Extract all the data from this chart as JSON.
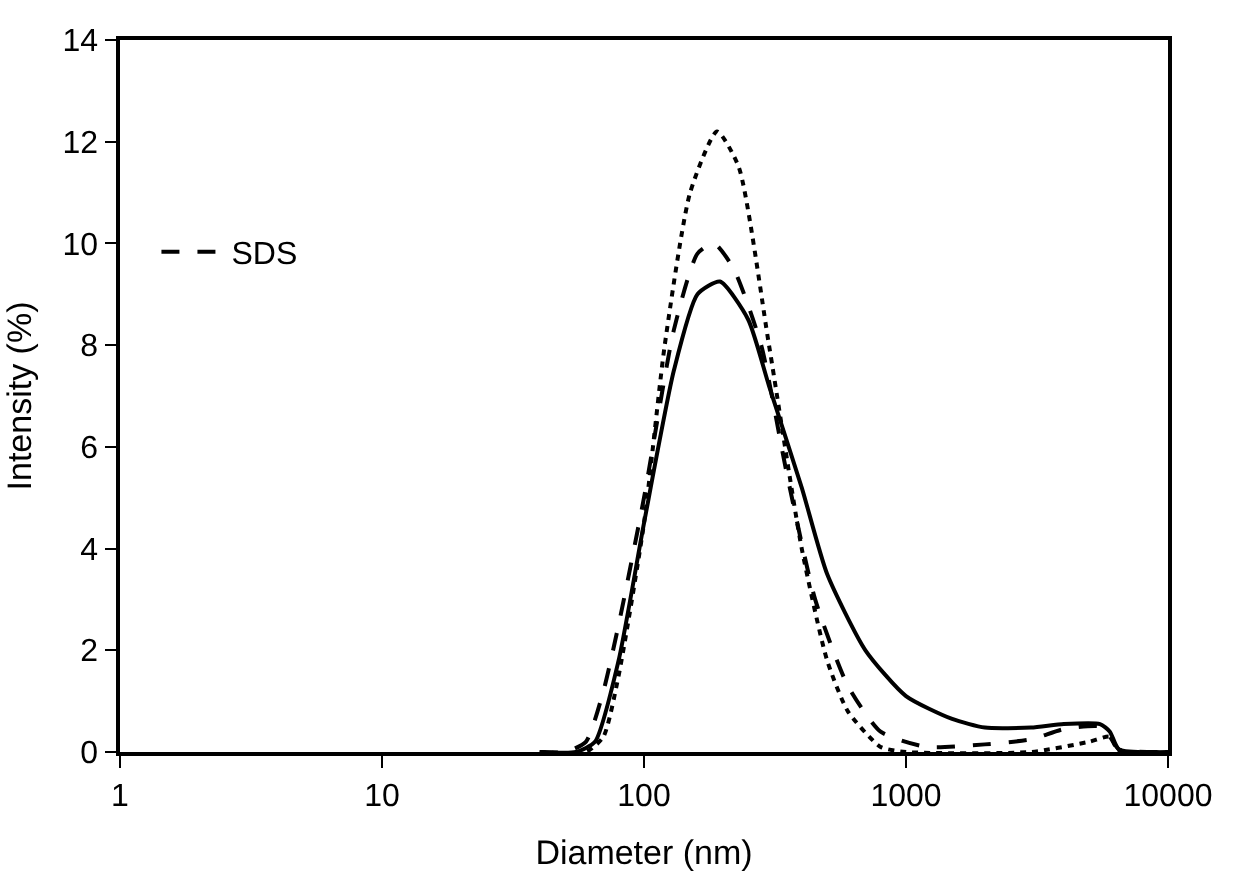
{
  "chart_data": {
    "type": "line",
    "xlabel": "Diameter (nm)",
    "ylabel": "Intensity (%)",
    "log": "x",
    "xlim": [
      1,
      10000
    ],
    "xticks": [
      1,
      10,
      100,
      1000,
      10000
    ],
    "ylim": [
      0,
      14
    ],
    "yticks": [
      0,
      2,
      4,
      6,
      8,
      10,
      12,
      14
    ],
    "grid": false,
    "legend": "top left",
    "marker": "none",
    "series": [
      {
        "color": "#000000",
        "line_style": "dotted",
        "x": [
          40,
          60,
          70,
          80,
          100,
          120,
          150,
          190,
          230,
          300,
          400,
          500,
          600,
          800,
          1000,
          3000,
          5000,
          6000,
          6500,
          10000
        ],
        "values": [
          0,
          0,
          0.3,
          1.5,
          4.5,
          8,
          11,
          12.2,
          11.5,
          8,
          4,
          1.8,
          0.8,
          0.1,
          0,
          0,
          0.2,
          0.3,
          0,
          0
        ]
      },
      {
        "color": "#000000",
        "line_style": "solid",
        "x": [
          40,
          55,
          65,
          80,
          100,
          130,
          160,
          195,
          250,
          300,
          400,
          500,
          700,
          1000,
          1500,
          2000,
          3000,
          4000,
          5500,
          6000,
          6500,
          10000
        ],
        "values": [
          0,
          0,
          0.2,
          1.8,
          4.5,
          7.5,
          9,
          9.25,
          8.5,
          7.2,
          5.2,
          3.5,
          2,
          1.1,
          0.65,
          0.48,
          0.48,
          0.55,
          0.55,
          0.4,
          0.05,
          0
        ]
      },
      {
        "name": "SDS",
        "color": "#000000",
        "line_style": "dashed",
        "x": [
          40,
          50,
          60,
          70,
          80,
          100,
          130,
          160,
          185,
          220,
          280,
          350,
          450,
          600,
          800,
          1200,
          2000,
          3000,
          4000,
          5500,
          6000,
          6500,
          10000
        ],
        "values": [
          0,
          0,
          0.2,
          1.2,
          2.5,
          5,
          8.3,
          9.8,
          10,
          9.5,
          8,
          5.5,
          3,
          1.3,
          0.4,
          0.1,
          0.15,
          0.25,
          0.45,
          0.5,
          0.3,
          0.05,
          0
        ]
      }
    ]
  }
}
